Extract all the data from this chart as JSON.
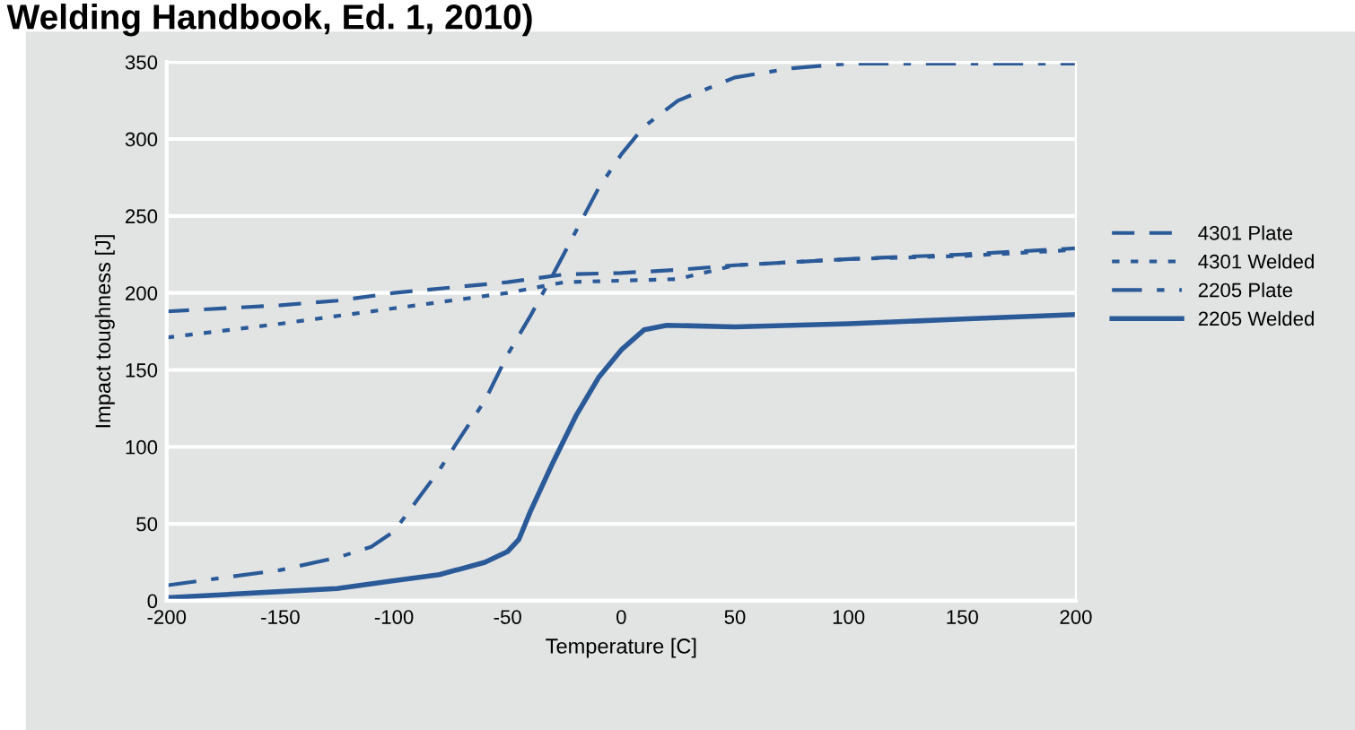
{
  "chart_data": {
    "type": "line",
    "title": "Welding Handbook, Ed. 1, 2010)",
    "xlabel": "Temperature [C]",
    "ylabel": "Impact toughness [J]",
    "xlim": [
      -200,
      200
    ],
    "xticks": [
      -200,
      -150,
      -100,
      -50,
      0,
      50,
      100,
      150,
      200
    ],
    "ylim": [
      0,
      350
    ],
    "yticks": [
      0,
      50,
      100,
      150,
      200,
      250,
      300,
      350
    ],
    "grid": "y",
    "legend": "right",
    "marker": "none",
    "series": [
      {
        "name": "4301 Plate",
        "color": "#2a5a98",
        "line_style": "dashed",
        "x": [
          -200,
          -150,
          -125,
          -100,
          -50,
          -25,
          0,
          25,
          50,
          100,
          150,
          200
        ],
        "values": [
          188,
          192,
          195,
          200,
          207,
          212,
          213,
          215,
          218,
          222,
          225,
          229
        ]
      },
      {
        "name": "4301 Welded",
        "color": "#2a5a98",
        "line_style": "dotted",
        "x": [
          -200,
          -150,
          -100,
          -50,
          -25,
          0,
          25,
          50,
          100,
          150,
          200
        ],
        "values": [
          171,
          180,
          190,
          200,
          207,
          208,
          209,
          218,
          222,
          224,
          228
        ]
      },
      {
        "name": "2205 Plate",
        "color": "#2a5a98",
        "line_style": "dashdot",
        "x": [
          -200,
          -150,
          -125,
          -110,
          -100,
          -90,
          -80,
          -70,
          -60,
          -50,
          -40,
          -30,
          -20,
          -10,
          0,
          10,
          25,
          50,
          75,
          100,
          150,
          200
        ],
        "values": [
          10,
          20,
          28,
          35,
          45,
          65,
          85,
          108,
          130,
          160,
          185,
          212,
          240,
          268,
          290,
          308,
          325,
          340,
          346,
          349,
          349,
          349
        ]
      },
      {
        "name": "2205 Welded",
        "color": "#2a5a98",
        "line_style": "solid",
        "x": [
          -200,
          -150,
          -125,
          -100,
          -80,
          -60,
          -50,
          -45,
          -40,
          -30,
          -20,
          -10,
          0,
          10,
          20,
          50,
          100,
          150,
          200
        ],
        "values": [
          2,
          6,
          8,
          13,
          17,
          25,
          32,
          40,
          58,
          90,
          120,
          145,
          163,
          176,
          179,
          178,
          180,
          183,
          186
        ]
      }
    ]
  }
}
